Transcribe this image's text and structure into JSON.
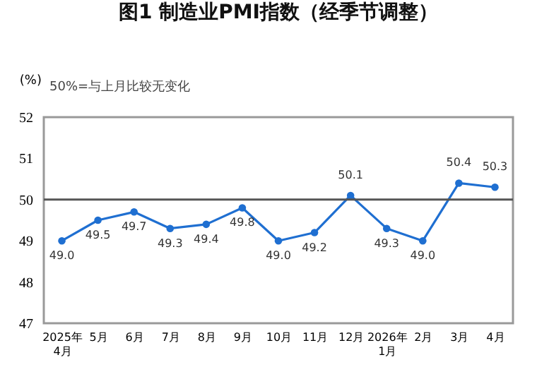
{
  "chart_data": {
    "type": "line",
    "title": "图1 制造业PMI指数（经季节调整）",
    "ylabel": "(%)",
    "annotations": [
      "50%=与上月比较无变化"
    ],
    "categories": [
      "2025年\n4月",
      "5月",
      "6月",
      "7月",
      "8月",
      "9月",
      "10月",
      "11月",
      "12月",
      "2026年\n1月",
      "2月",
      "3月",
      "4月"
    ],
    "values": [
      49.0,
      49.5,
      49.7,
      49.3,
      49.4,
      49.8,
      49.0,
      49.2,
      50.1,
      49.3,
      49.0,
      50.4,
      50.3
    ],
    "value_labels": [
      "49.0",
      "49.5",
      "49.7",
      "49.3",
      "49.4",
      "49.8",
      "49.0",
      "49.2",
      "50.1",
      "49.3",
      "49.0",
      "50.4",
      "50.3"
    ],
    "color": "#1f6fd1",
    "marker": "circle",
    "ylim": [
      47,
      52
    ],
    "yticks": [
      47,
      48,
      49,
      50,
      51,
      52
    ],
    "grid": false,
    "ref_lines": [
      {
        "axis": "y",
        "value": 50,
        "color": "#555555"
      }
    ]
  }
}
